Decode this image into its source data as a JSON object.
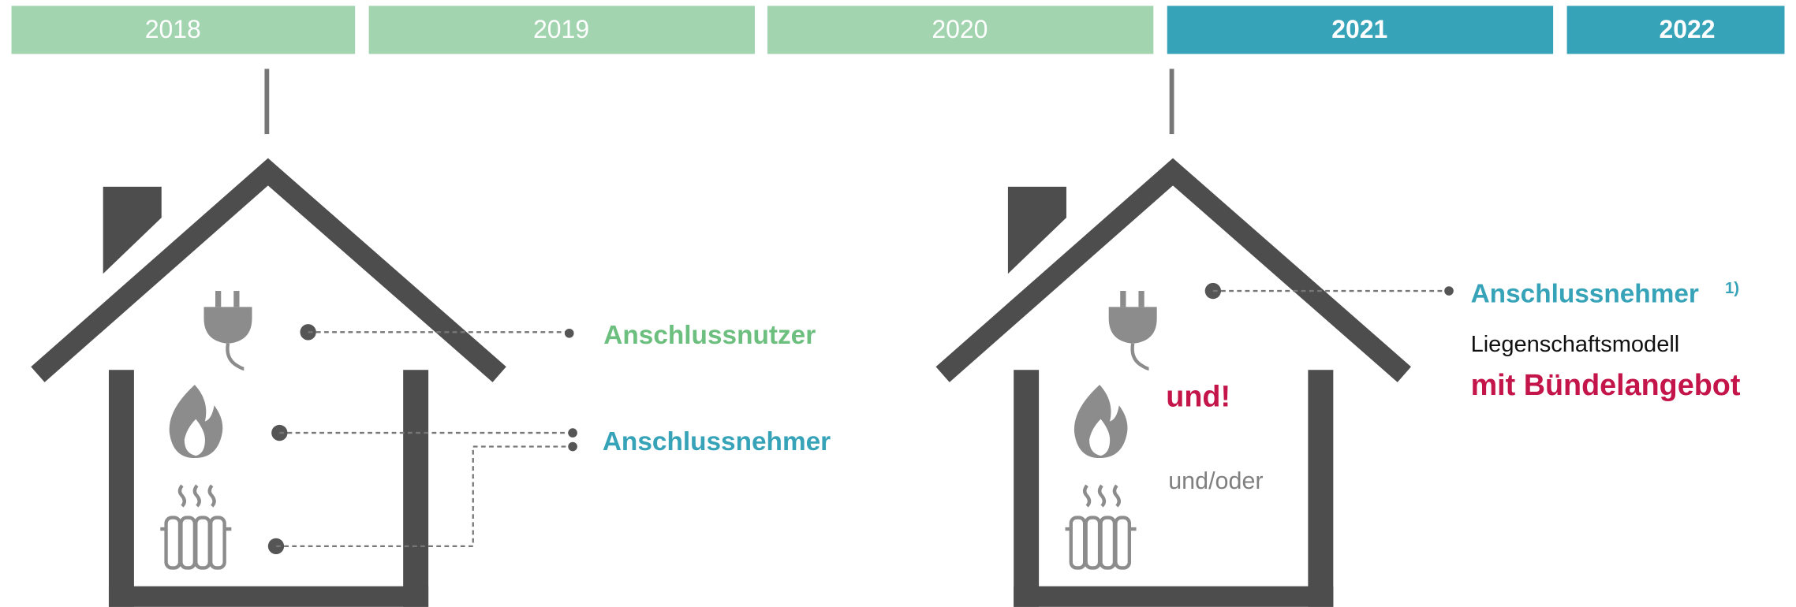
{
  "timeline": [
    "2018",
    "2019",
    "2020",
    "2021",
    "2022"
  ],
  "left": {
    "user_label": "Anschlussnutzer",
    "owner_label": "Anschlussnehmer"
  },
  "right": {
    "owner_label": "Anschlussnehmer",
    "footnote": "1)",
    "model": "Liegenschaftsmodell",
    "bundle": "mit Bündelangebot",
    "and": "und!",
    "and_or": "und/oder"
  }
}
